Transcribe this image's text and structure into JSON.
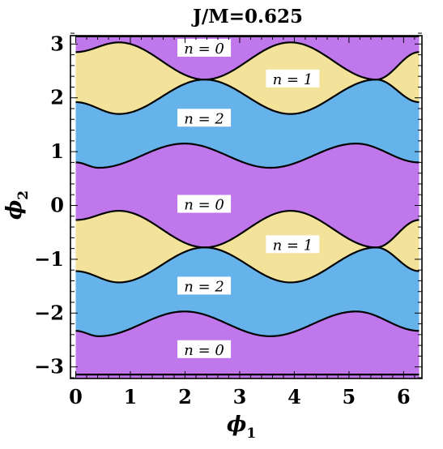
{
  "chart_data": {
    "type": "area",
    "title": "J/M=0.625",
    "xlabel": "ϕ",
    "xlabel_sub": "1",
    "ylabel": "ϕ",
    "ylabel_sub": "2",
    "xlim": [
      0,
      6.2832
    ],
    "ylim": [
      -3.2,
      3.2
    ],
    "x_ticks": [
      {
        "value": 0,
        "label": "0"
      },
      {
        "value": 1,
        "label": "1"
      },
      {
        "value": 2,
        "label": "2"
      },
      {
        "value": 3,
        "label": "3"
      },
      {
        "value": 4,
        "label": "4"
      },
      {
        "value": 5,
        "label": "5"
      },
      {
        "value": 6,
        "label": "6"
      }
    ],
    "y_ticks": [
      {
        "value": 3,
        "label": "3"
      },
      {
        "value": 2,
        "label": "2"
      },
      {
        "value": 1,
        "label": "1"
      },
      {
        "value": 0,
        "label": "0"
      },
      {
        "value": -1,
        "label": "−1"
      },
      {
        "value": -2,
        "label": "−2"
      },
      {
        "value": -3,
        "label": "−3"
      }
    ],
    "colors": {
      "n0": "#c177ec",
      "n1": "#f2e29a",
      "n2": "#66b2ea",
      "boundary": "#000000"
    },
    "boundary_lines": [
      3.1416,
      -3.1416
    ],
    "upper_band": {
      "curve_a": [
        [
          0,
          2.85
        ],
        [
          0.79,
          3.03
        ],
        [
          2.36,
          2.34
        ],
        [
          3.93,
          1.7
        ],
        [
          5.5,
          2.34
        ],
        [
          6.2832,
          2.85
        ]
      ],
      "curve_b": [
        [
          0,
          1.92
        ],
        [
          0.79,
          1.7
        ],
        [
          2.36,
          2.34
        ],
        [
          3.93,
          3.03
        ],
        [
          5.5,
          2.34
        ],
        [
          6.2832,
          1.92
        ]
      ],
      "lower_curve": [
        [
          0,
          0.8
        ],
        [
          0.42,
          0.7
        ],
        [
          1.99,
          1.15
        ],
        [
          3.56,
          0.7
        ],
        [
          5.13,
          1.15
        ],
        [
          6.2832,
          0.8
        ]
      ]
    },
    "lower_band": {
      "curve_a": [
        [
          0,
          -0.27
        ],
        [
          0.79,
          -0.1
        ],
        [
          2.36,
          -0.78
        ],
        [
          3.93,
          -1.43
        ],
        [
          5.5,
          -0.78
        ],
        [
          6.2832,
          -0.27
        ]
      ],
      "curve_b": [
        [
          0,
          -1.22
        ],
        [
          0.79,
          -1.43
        ],
        [
          2.36,
          -0.78
        ],
        [
          3.93,
          -0.1
        ],
        [
          5.5,
          -0.78
        ],
        [
          6.2832,
          -1.22
        ]
      ],
      "lower_curve": [
        [
          0,
          -2.33
        ],
        [
          0.42,
          -2.43
        ],
        [
          1.99,
          -1.97
        ],
        [
          3.56,
          -2.43
        ],
        [
          5.13,
          -1.97
        ],
        [
          6.2832,
          -2.33
        ]
      ]
    },
    "annotations": [
      {
        "text": "n = 0",
        "x": 2.35,
        "y": 2.9
      },
      {
        "text": "n = 1",
        "x": 3.97,
        "y": 2.33
      },
      {
        "text": "n = 2",
        "x": 2.35,
        "y": 1.6
      },
      {
        "text": "n = 0",
        "x": 2.35,
        "y": 0.0
      },
      {
        "text": "n = 1",
        "x": 3.97,
        "y": -0.75
      },
      {
        "text": "n = 2",
        "x": 2.35,
        "y": -1.52
      },
      {
        "text": "n = 0",
        "x": 2.35,
        "y": -2.7
      }
    ]
  }
}
